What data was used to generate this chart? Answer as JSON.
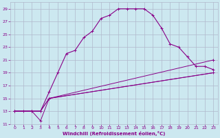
{
  "xlabel": "Windchill (Refroidissement éolien,°C)",
  "bg_color": "#cce8f0",
  "line_color": "#880088",
  "grid_color": "#b0b8cc",
  "xlim": [
    -0.5,
    23.5
  ],
  "ylim": [
    11,
    30
  ],
  "xticks": [
    0,
    1,
    2,
    3,
    4,
    5,
    6,
    7,
    8,
    9,
    10,
    11,
    12,
    13,
    14,
    15,
    16,
    17,
    18,
    19,
    20,
    21,
    22,
    23
  ],
  "yticks": [
    11,
    13,
    15,
    17,
    19,
    21,
    23,
    25,
    27,
    29
  ],
  "line1_x": [
    0,
    1,
    2,
    3,
    4,
    5,
    6,
    7,
    8,
    9,
    10,
    11,
    12,
    13,
    14,
    15,
    16,
    17,
    18,
    19,
    20,
    21,
    22,
    23
  ],
  "line1_y": [
    13,
    13,
    13,
    13,
    16,
    19,
    22,
    22.5,
    24.5,
    25.5,
    27.5,
    28,
    29,
    29,
    29,
    29,
    28,
    26,
    23.5,
    23,
    21.5,
    20,
    20,
    19.5
  ],
  "line2_x": [
    0,
    2,
    3,
    4,
    23
  ],
  "line2_y": [
    13,
    13,
    13,
    15,
    21
  ],
  "line3_x": [
    0,
    2,
    3,
    4,
    23
  ],
  "line3_y": [
    13,
    13,
    13,
    15,
    19
  ],
  "line4_x": [
    0,
    2,
    3,
    4,
    23
  ],
  "line4_y": [
    13,
    13,
    11.5,
    15,
    19
  ]
}
